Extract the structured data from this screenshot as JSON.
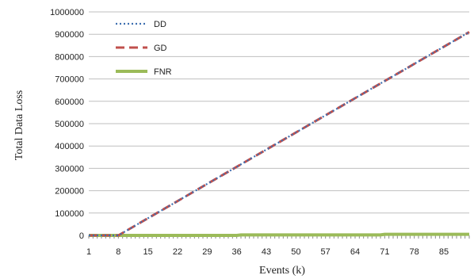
{
  "chart_data": {
    "type": "line",
    "xlabel": "Events  (k)",
    "ylabel": "Total Data Loss",
    "x_ticks": [
      "1",
      "8",
      "15",
      "22",
      "29",
      "36",
      "43",
      "50",
      "57",
      "64",
      "71",
      "78",
      "85"
    ],
    "xlim": [
      1,
      91
    ],
    "ylim": [
      0,
      1000000
    ],
    "y_ticks": [
      "0",
      "100000",
      "200000",
      "300000",
      "400000",
      "500000",
      "600000",
      "700000",
      "800000",
      "900000",
      "1000000"
    ],
    "grid": "horizontal",
    "legend_position": "top-left",
    "series": [
      {
        "name": "DD",
        "color": "#3f6fb0",
        "style": "dotted",
        "x": [
          1,
          8,
          91
        ],
        "y": [
          0,
          0,
          910000
        ]
      },
      {
        "name": "GD",
        "color": "#c0504d",
        "style": "dashed",
        "x": [
          1,
          8,
          91
        ],
        "y": [
          0,
          0,
          910000
        ]
      },
      {
        "name": "FNR",
        "color": "#9bbb59",
        "style": "solid",
        "x": [
          1,
          36,
          37,
          70,
          71,
          91
        ],
        "y": [
          0,
          0,
          2000,
          2000,
          5000,
          5000
        ]
      }
    ]
  }
}
